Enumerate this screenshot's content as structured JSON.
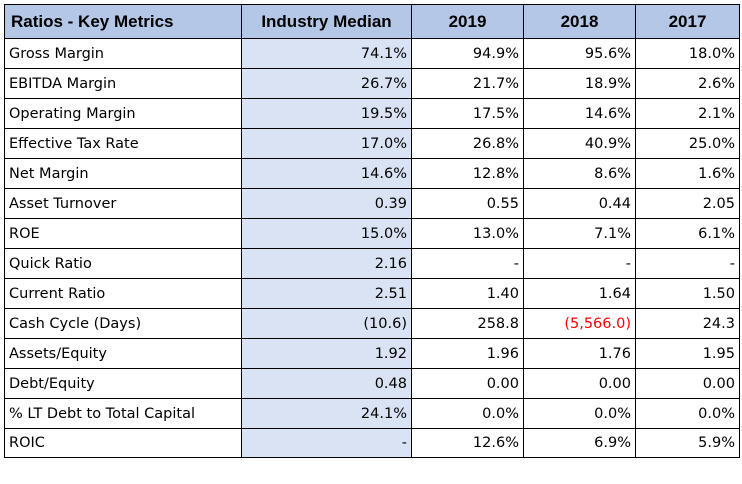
{
  "table": {
    "headers": [
      "Ratios - Key Metrics",
      "Industry Median",
      "2019",
      "2018",
      "2017"
    ],
    "rows": [
      {
        "metric": "Gross Margin",
        "values": [
          "74.1%",
          "94.9%",
          "95.6%",
          "18.0%"
        ]
      },
      {
        "metric": "EBITDA Margin",
        "values": [
          "26.7%",
          "21.7%",
          "18.9%",
          "2.6%"
        ]
      },
      {
        "metric": "Operating Margin",
        "values": [
          "19.5%",
          "17.5%",
          "14.6%",
          "2.1%"
        ]
      },
      {
        "metric": "Effective Tax Rate",
        "values": [
          "17.0%",
          "26.8%",
          "40.9%",
          "25.0%"
        ]
      },
      {
        "metric": "Net Margin",
        "values": [
          "14.6%",
          "12.8%",
          "8.6%",
          "1.6%"
        ]
      },
      {
        "metric": "Asset Turnover",
        "values": [
          "0.39",
          "0.55",
          "0.44",
          "2.05"
        ]
      },
      {
        "metric": "ROE",
        "values": [
          "15.0%",
          "13.0%",
          "7.1%",
          "6.1%"
        ]
      },
      {
        "metric": "Quick Ratio",
        "values": [
          "2.16",
          "-",
          "-",
          "-"
        ]
      },
      {
        "metric": "Current Ratio",
        "values": [
          "2.51",
          "1.40",
          "1.64",
          "1.50"
        ]
      },
      {
        "metric": "Cash Cycle (Days)",
        "values": [
          "(10.6)",
          "258.8",
          "(5,566.0)",
          "24.3"
        ]
      },
      {
        "metric": "Assets/Equity",
        "values": [
          "1.92",
          "1.96",
          "1.76",
          "1.95"
        ]
      },
      {
        "metric": "Debt/Equity",
        "values": [
          "0.48",
          "0.00",
          "0.00",
          "0.00"
        ]
      },
      {
        "metric": "% LT Debt to Total Capital",
        "values": [
          "24.1%",
          "0.0%",
          "0.0%",
          "0.0%"
        ]
      },
      {
        "metric": "ROIC",
        "values": [
          "-",
          "12.6%",
          "6.9%",
          "5.9%"
        ]
      }
    ]
  },
  "colors": {
    "header_fill": "#b4c7e7",
    "median_fill": "#dae3f3",
    "negative_text": "#ff0000"
  }
}
